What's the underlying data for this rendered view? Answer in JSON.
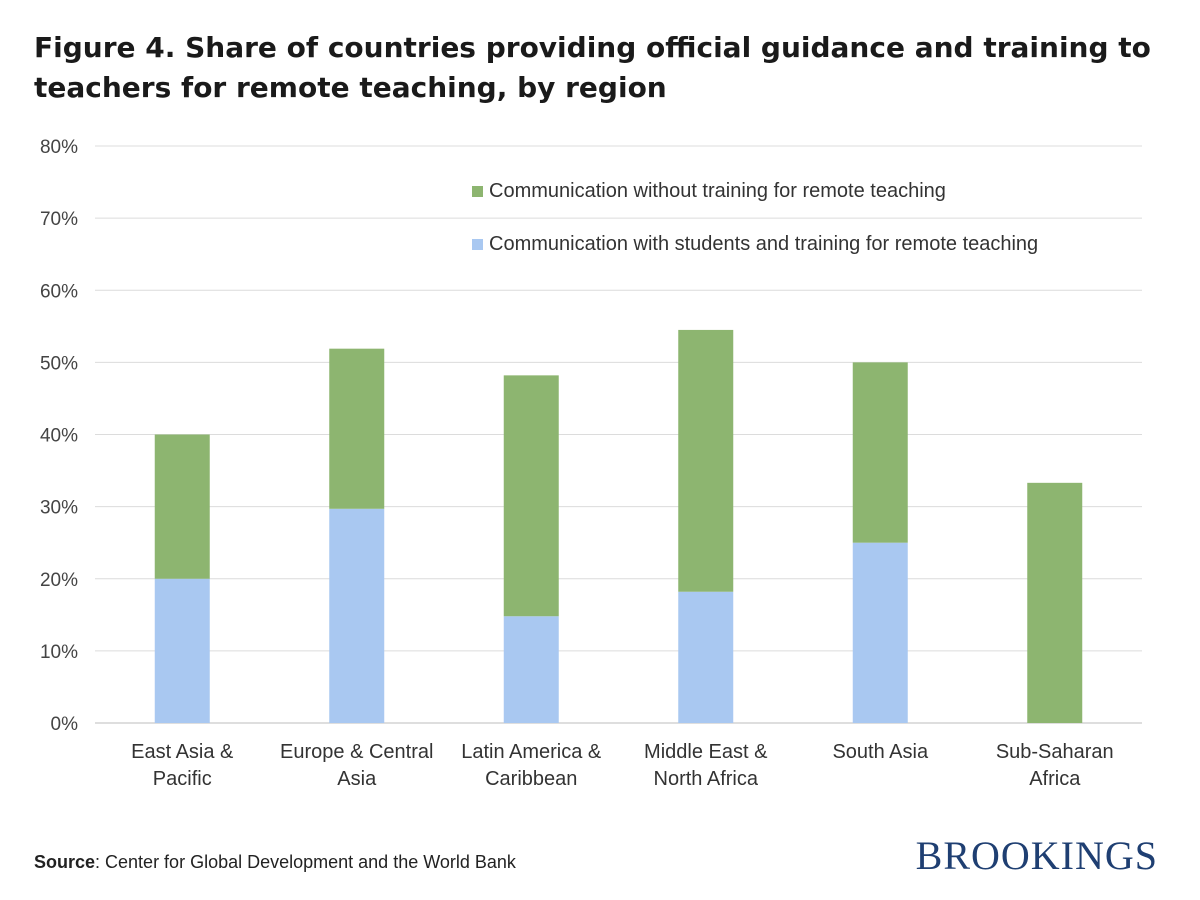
{
  "figure": {
    "title": "Figure 4. Share of countries providing official guidance and training to teachers for remote teaching, by region",
    "source_label": "Source",
    "source_text": ": Center for Global Development and the World Bank",
    "brand": "BROOKINGS"
  },
  "chart_data": {
    "type": "bar",
    "stacked": true,
    "categories": [
      [
        "East Asia &",
        "Pacific"
      ],
      [
        "Europe & Central",
        "Asia"
      ],
      [
        "Latin America &",
        "Caribbean"
      ],
      [
        "Middle East &",
        "North Africa"
      ],
      [
        "South Asia"
      ],
      [
        "Sub-Saharan",
        "Africa"
      ]
    ],
    "series": [
      {
        "name": "Communication with students and training for remote teaching",
        "color": "#a9c8f1",
        "values": [
          20,
          29.7,
          14.8,
          18.2,
          25,
          0
        ]
      },
      {
        "name": "Communication without training for remote teaching",
        "color": "#8db570",
        "values": [
          20,
          22.2,
          33.4,
          36.3,
          25,
          33.3
        ]
      }
    ],
    "legend_order": [
      1,
      0
    ],
    "legend_position": "top-right",
    "ylim": [
      0,
      80
    ],
    "yticks": [
      0,
      10,
      20,
      30,
      40,
      50,
      60,
      70,
      80
    ],
    "ytick_suffix": "%",
    "grid": true
  }
}
